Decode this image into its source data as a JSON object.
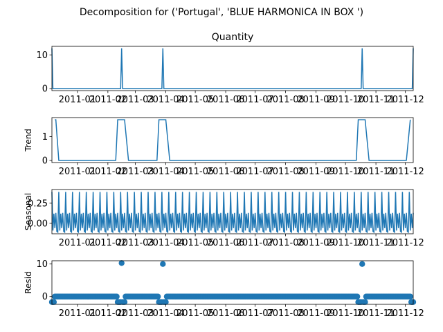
{
  "figure": {
    "suptitle": "Decomposition for ('Portugal', 'BLUE HARMONICA IN BOX ')"
  },
  "chart_data": [
    {
      "type": "line",
      "title": "Quantity",
      "xlabel": "",
      "ylabel": "",
      "xlim": [
        "2010-12-06",
        "2011-12-09"
      ],
      "ylim": [
        -0.6,
        12.6
      ],
      "yticks": [
        0,
        10
      ],
      "xticks": [
        "2011-01",
        "2011-02",
        "2011-03",
        "2011-04",
        "2011-05",
        "2011-06",
        "2011-07",
        "2011-08",
        "2011-09",
        "2011-10",
        "2011-11",
        "2011-12"
      ],
      "series": [
        {
          "x": [
            "2010-12-06",
            "2010-12-07",
            "2011-02-14",
            "2011-02-15",
            "2011-02-16",
            "2011-03-28",
            "2011-03-29",
            "2011-03-30",
            "2011-10-17",
            "2011-10-18",
            "2011-10-19",
            "2011-12-08",
            "2011-12-09"
          ],
          "values": [
            12,
            0,
            0,
            12,
            0,
            0,
            12,
            0,
            0,
            12,
            0,
            0,
            12
          ],
          "color": "#1f77b4"
        }
      ]
    },
    {
      "type": "line",
      "title": "",
      "xlabel": "",
      "ylabel": "Trend",
      "xlim": [
        "2010-12-06",
        "2011-12-09"
      ],
      "ylim": [
        -0.09,
        1.8
      ],
      "yticks": [
        0,
        1
      ],
      "xticks": [
        "2011-01",
        "2011-02",
        "2011-03",
        "2011-04",
        "2011-05",
        "2011-06",
        "2011-07",
        "2011-08",
        "2011-09",
        "2011-10",
        "2011-11",
        "2011-12"
      ],
      "series": [
        {
          "x": [
            "2010-12-09",
            "2010-12-10",
            "2010-12-13",
            "2011-02-09",
            "2011-02-11",
            "2011-02-18",
            "2011-02-22",
            "2011-03-23",
            "2011-03-25",
            "2011-04-01",
            "2011-04-05",
            "2011-10-12",
            "2011-10-14",
            "2011-10-21",
            "2011-10-25",
            "2011-12-02",
            "2011-12-06"
          ],
          "values": [
            1.71,
            1.71,
            0,
            0,
            1.71,
            1.71,
            0,
            0,
            1.71,
            1.71,
            0,
            0,
            1.71,
            1.71,
            0,
            0,
            1.71
          ],
          "color": "#1f77b4"
        }
      ]
    },
    {
      "type": "line",
      "title": "",
      "xlabel": "",
      "ylabel": "Seasonal",
      "xlim": [
        "2010-12-06",
        "2011-12-09"
      ],
      "ylim": [
        -0.13,
        0.42
      ],
      "yticks": [
        -0.0,
        0.25
      ],
      "ytick_labels": [
        "0.00",
        "0.25"
      ],
      "xticks": [
        "2011-01",
        "2011-02",
        "2011-03",
        "2011-04",
        "2011-05",
        "2011-06",
        "2011-07",
        "2011-08",
        "2011-09",
        "2011-10",
        "2011-11",
        "2011-12"
      ],
      "period_days": 7,
      "weekly_pattern": [
        0.39,
        -0.09,
        0.12,
        -0.06,
        0.13,
        -0.1,
        -0.11
      ],
      "series": [
        {
          "name": "",
          "start": "2010-12-06",
          "end": "2011-12-09",
          "color": "#1f77b4"
        }
      ]
    },
    {
      "type": "scatter",
      "title": "",
      "xlabel": "",
      "ylabel": "Resid",
      "xlim": [
        "2010-12-06",
        "2011-12-09"
      ],
      "ylim": [
        -2.4,
        11.0
      ],
      "yticks": [
        0,
        10
      ],
      "xticks": [
        "2011-01",
        "2011-02",
        "2011-03",
        "2011-04",
        "2011-05",
        "2011-06",
        "2011-07",
        "2011-08",
        "2011-09",
        "2011-10",
        "2011-11",
        "2011-12"
      ],
      "baseline": 0,
      "baseline_range": [
        "2010-12-09",
        "2011-12-06"
      ],
      "points": [
        {
          "x": "2010-12-06",
          "y": -1.7
        },
        {
          "x": "2010-12-07",
          "y": -1.7
        },
        {
          "x": "2010-12-08",
          "y": -1.7
        },
        {
          "x": "2011-02-11",
          "y": -1.7
        },
        {
          "x": "2011-02-12",
          "y": -1.7
        },
        {
          "x": "2011-02-13",
          "y": -1.7
        },
        {
          "x": "2011-02-14",
          "y": -1.7
        },
        {
          "x": "2011-02-15",
          "y": 10.3
        },
        {
          "x": "2011-02-16",
          "y": -1.7
        },
        {
          "x": "2011-02-17",
          "y": -1.7
        },
        {
          "x": "2011-02-18",
          "y": -1.7
        },
        {
          "x": "2011-03-25",
          "y": -1.7
        },
        {
          "x": "2011-03-26",
          "y": -1.7
        },
        {
          "x": "2011-03-27",
          "y": -1.7
        },
        {
          "x": "2011-03-28",
          "y": -1.7
        },
        {
          "x": "2011-03-29",
          "y": 10.0
        },
        {
          "x": "2011-03-30",
          "y": -1.7
        },
        {
          "x": "2011-03-31",
          "y": -1.7
        },
        {
          "x": "2011-04-01",
          "y": -1.7
        },
        {
          "x": "2011-10-14",
          "y": -1.7
        },
        {
          "x": "2011-10-15",
          "y": -1.7
        },
        {
          "x": "2011-10-16",
          "y": -1.7
        },
        {
          "x": "2011-10-17",
          "y": -1.7
        },
        {
          "x": "2011-10-18",
          "y": 10.0
        },
        {
          "x": "2011-10-19",
          "y": -1.7
        },
        {
          "x": "2011-10-20",
          "y": -1.7
        },
        {
          "x": "2011-10-21",
          "y": -1.7
        },
        {
          "x": "2011-12-07",
          "y": -1.7
        },
        {
          "x": "2011-12-08",
          "y": -1.7
        },
        {
          "x": "2011-12-09",
          "y": -1.7
        }
      ],
      "marker_color": "#1f77b4"
    }
  ]
}
